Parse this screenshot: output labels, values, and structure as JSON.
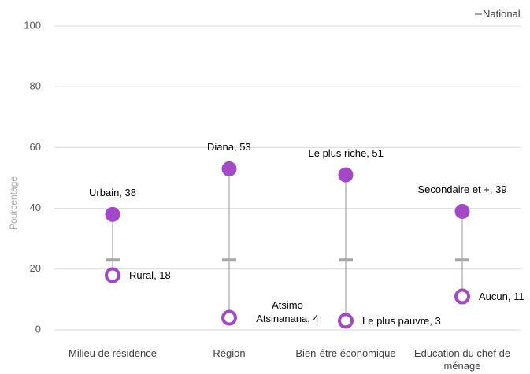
{
  "chart_data": {
    "type": "dot-range",
    "y_axis_label": "Pourcentage",
    "categories": [
      "Milieu de résidence",
      "Région",
      "Bien-être économique",
      "Education du chef de ménage"
    ],
    "series": [
      {
        "color": "#a348c8",
        "marker": "filled",
        "values": [
          38,
          53,
          51,
          39
        ],
        "value_labels": [
          "Urbain, 38",
          "Diana, 53",
          "Le plus riche, 51",
          "Secondaire et +, 39"
        ]
      },
      {
        "color": "#a348c8",
        "marker": "ring",
        "values": [
          18,
          4,
          3,
          11
        ],
        "value_labels": [
          "Rural, 18",
          "Atsimo Atsinanana, 4",
          "Le plus pauvre, 3",
          "Aucun, 11"
        ]
      }
    ],
    "national": {
      "name": "National",
      "color": "#a6a6a6",
      "values": [
        23,
        23,
        23,
        23
      ]
    },
    "ylim": [
      0,
      100
    ],
    "yticks": [
      0,
      20,
      40,
      60,
      80,
      100
    ],
    "grid": true,
    "legend": "top-right"
  }
}
